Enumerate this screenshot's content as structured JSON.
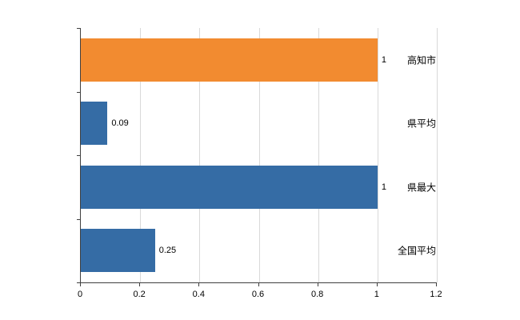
{
  "chart_data": {
    "type": "bar",
    "orientation": "horizontal",
    "title": "",
    "xlabel": "",
    "ylabel": "",
    "categories": [
      "高知市",
      "県平均",
      "県最大",
      "全国平均"
    ],
    "values": [
      1,
      0.09,
      1,
      0.25
    ],
    "data_labels": [
      "1",
      "0.09",
      "1",
      "0.25"
    ],
    "bar_colors": [
      "#F28B30",
      "#356CA5",
      "#356CA5",
      "#356CA5"
    ],
    "xlim": [
      0,
      1.2
    ],
    "xticks": [
      0,
      0.2,
      0.4,
      0.6,
      0.8,
      1,
      1.2
    ],
    "xtick_labels": [
      "0",
      "0.2",
      "0.4",
      "0.6",
      "0.8",
      "1",
      "1.2"
    ],
    "grid": "vertical",
    "legend": "none"
  },
  "colors": {
    "background": "#ffffff",
    "axis": "#404040",
    "gridline": "#d9d9d9",
    "text": "#000000",
    "bar_orange": "#F28B30",
    "bar_blue": "#356CA5"
  }
}
